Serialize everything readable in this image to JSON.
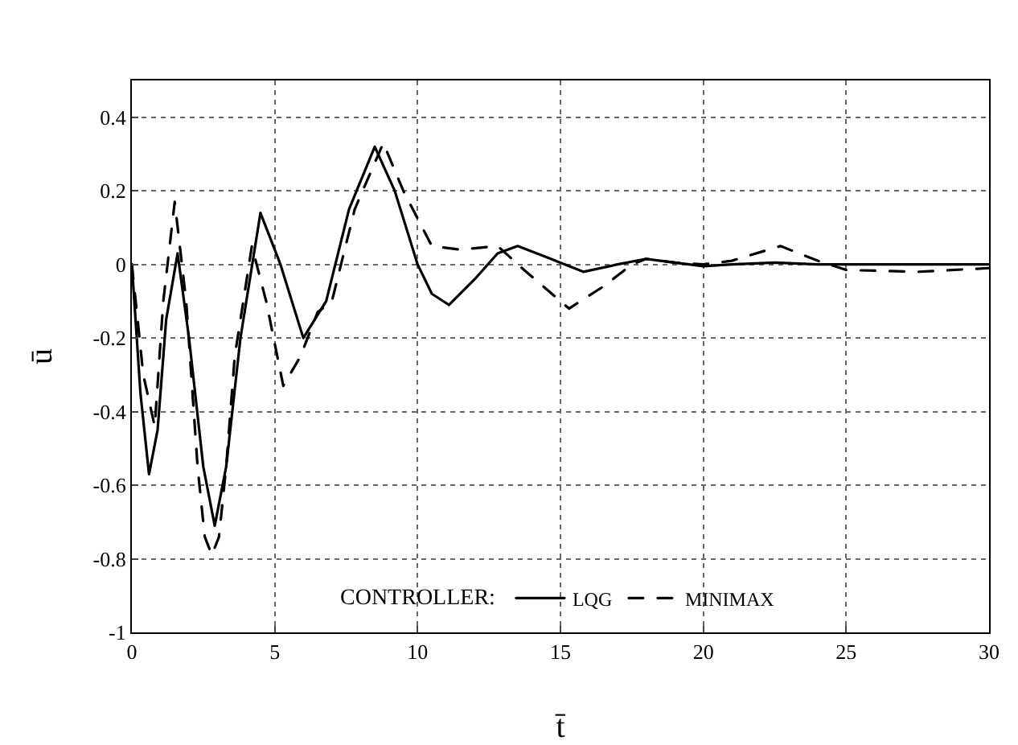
{
  "chart_data": {
    "type": "line",
    "xlabel": "t̄",
    "ylabel": "ū",
    "legend_title": "CONTROLLER:",
    "xlim": [
      0,
      30
    ],
    "ylim": [
      -1,
      0.5
    ],
    "xticks": [
      0,
      5,
      10,
      15,
      20,
      25,
      30
    ],
    "yticks": [
      -1,
      -0.8,
      -0.6,
      -0.4,
      -0.2,
      0,
      0.2,
      0.4
    ],
    "grid": true,
    "legend": "bottom",
    "series": [
      {
        "name": "LQG",
        "color": "#000000",
        "line_style": "solid",
        "x": [
          0,
          0.3,
          0.6,
          0.9,
          1.2,
          1.6,
          2.0,
          2.5,
          2.9,
          3.3,
          3.8,
          4.5,
          5.2,
          6.0,
          6.8,
          7.6,
          8.5,
          9.2,
          10.0,
          10.5,
          11.1,
          12.0,
          12.8,
          13.5,
          14.5,
          15.8,
          17.0,
          18.0,
          19.0,
          20.0,
          21.0,
          22.5,
          24.0,
          25.0,
          27.5,
          30
        ],
        "values": [
          0,
          -0.35,
          -0.57,
          -0.45,
          -0.15,
          0.03,
          -0.2,
          -0.55,
          -0.71,
          -0.55,
          -0.2,
          0.14,
          0.0,
          -0.2,
          -0.1,
          0.15,
          0.32,
          0.2,
          0.0,
          -0.08,
          -0.11,
          -0.04,
          0.03,
          0.05,
          0.02,
          -0.02,
          0.0,
          0.015,
          0.005,
          -0.005,
          0.0,
          0.005,
          0.0,
          0.0,
          0.0,
          0.0
        ]
      },
      {
        "name": "MINIMAX",
        "color": "#000000",
        "line_style": "dashed",
        "x": [
          0,
          0.4,
          0.8,
          1.1,
          1.5,
          1.9,
          2.3,
          2.55,
          2.8,
          3.05,
          3.3,
          3.6,
          4.2,
          4.7,
          5.3,
          5.9,
          6.5,
          7.0,
          7.8,
          8.8,
          9.5,
          10.5,
          11.5,
          12.8,
          13.8,
          15.3,
          16.5,
          17.5,
          18.0,
          19.0,
          20.0,
          21.0,
          22.7,
          24.0,
          25.0,
          27.5,
          30
        ],
        "values": [
          0,
          -0.3,
          -0.44,
          -0.1,
          0.17,
          -0.1,
          -0.55,
          -0.74,
          -0.79,
          -0.74,
          -0.55,
          -0.25,
          0.05,
          -0.1,
          -0.33,
          -0.25,
          -0.13,
          -0.1,
          0.15,
          0.33,
          0.2,
          0.05,
          0.04,
          0.05,
          -0.02,
          -0.12,
          -0.06,
          0.0,
          0.015,
          0.005,
          0.0,
          0.01,
          0.05,
          0.01,
          -0.015,
          -0.02,
          -0.01
        ]
      }
    ]
  }
}
